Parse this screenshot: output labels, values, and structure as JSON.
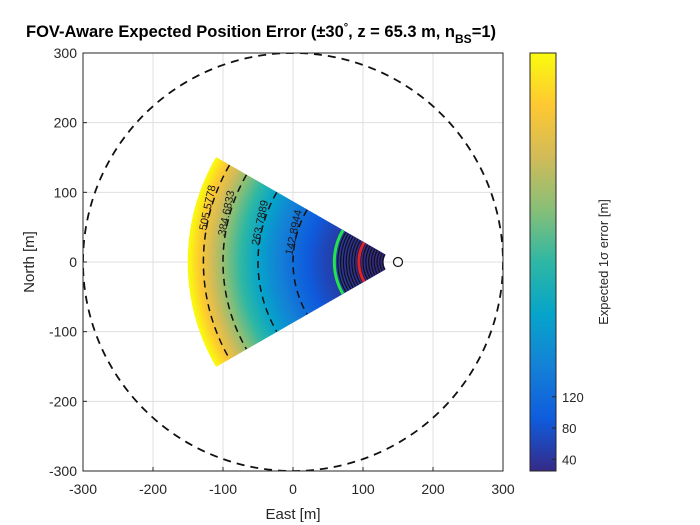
{
  "chart_data": {
    "type": "heatmap",
    "title": {
      "main": "FOV-Aware Expected Position Error (±30",
      "degree_mark": "°",
      "mid": ", z = 65.3 m, n",
      "subscript": "BS",
      "tail": "=1)"
    },
    "xlabel": "East [m]",
    "ylabel": "North [m]",
    "xlim": [
      -300,
      300
    ],
    "ylim": [
      -300,
      300
    ],
    "x_ticks": [
      -300,
      -200,
      -100,
      0,
      100,
      200,
      300
    ],
    "y_ticks": [
      -300,
      -200,
      -100,
      0,
      100,
      200,
      300
    ],
    "grid": true,
    "base_station": {
      "east": 150,
      "north": 0,
      "fov_half_angle_deg": 30
    },
    "sector_max_range": 300,
    "range_circle_radius": 300,
    "error_model": {
      "dr_min_m": 21,
      "dr_max_m": 300,
      "err_min": 25,
      "err_max": 560
    },
    "contours": [
      {
        "label": "505.5778",
        "distance": 278
      },
      {
        "label": "384.6833",
        "distance": 250
      },
      {
        "label": "263.7889",
        "distance": 200
      },
      {
        "label": "142.8944",
        "distance": 150
      }
    ],
    "highlight_arcs": [
      {
        "name": "green arc",
        "distance": 91,
        "color": "#22e34a"
      },
      {
        "name": "red arc",
        "distance": 56,
        "color": "#e0202a"
      }
    ],
    "colorbar": {
      "label": "Expected 1σ error [m]",
      "ticks": [
        40,
        80,
        120
      ],
      "range": [
        25,
        560
      ]
    },
    "colors": {
      "parula": [
        "#352a87",
        "#0f5cdd",
        "#1481d6",
        "#06a4ca",
        "#2eb7a4",
        "#87bf77",
        "#d1bb59",
        "#fec832",
        "#f9fb0e"
      ]
    }
  }
}
